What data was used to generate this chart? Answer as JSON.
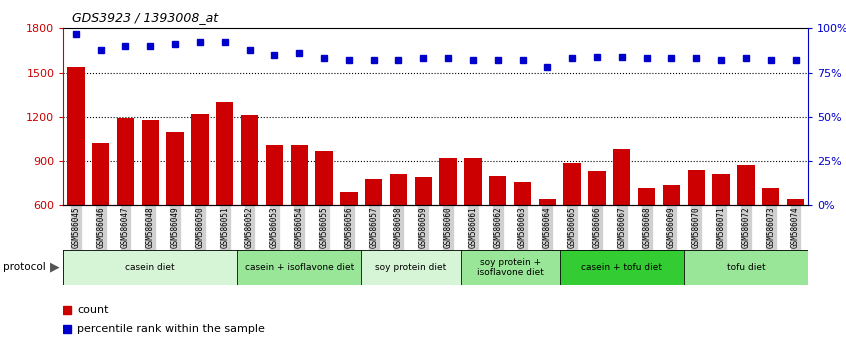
{
  "title": "GDS3923 / 1393008_at",
  "samples": [
    "GSM586045",
    "GSM586046",
    "GSM586047",
    "GSM586048",
    "GSM586049",
    "GSM586050",
    "GSM586051",
    "GSM586052",
    "GSM586053",
    "GSM586054",
    "GSM586055",
    "GSM586056",
    "GSM586057",
    "GSM586058",
    "GSM586059",
    "GSM586060",
    "GSM586061",
    "GSM586062",
    "GSM586063",
    "GSM586064",
    "GSM586065",
    "GSM586066",
    "GSM586067",
    "GSM586068",
    "GSM586069",
    "GSM586070",
    "GSM586071",
    "GSM586072",
    "GSM586073",
    "GSM586074"
  ],
  "counts": [
    1540,
    1020,
    1190,
    1180,
    1100,
    1220,
    1300,
    1210,
    1010,
    1010,
    970,
    690,
    780,
    810,
    790,
    920,
    920,
    800,
    760,
    640,
    890,
    830,
    980,
    720,
    740,
    840,
    810,
    870,
    720,
    640
  ],
  "percentile": [
    97,
    88,
    90,
    90,
    91,
    92,
    92,
    88,
    85,
    86,
    83,
    82,
    82,
    82,
    83,
    83,
    82,
    82,
    82,
    78,
    83,
    84,
    84,
    83,
    83,
    83,
    82,
    83,
    82,
    82
  ],
  "groups": [
    {
      "label": "casein diet",
      "start": 0,
      "end": 6,
      "color": "#d6f5d6"
    },
    {
      "label": "casein + isoflavone diet",
      "start": 7,
      "end": 11,
      "color": "#99e699"
    },
    {
      "label": "soy protein diet",
      "start": 12,
      "end": 15,
      "color": "#d6f5d6"
    },
    {
      "label": "soy protein +\nisoflavone diet",
      "start": 16,
      "end": 19,
      "color": "#99e699"
    },
    {
      "label": "casein + tofu diet",
      "start": 20,
      "end": 24,
      "color": "#33cc33"
    },
    {
      "label": "tofu diet",
      "start": 25,
      "end": 29,
      "color": "#99e699"
    }
  ],
  "ylim_left": [
    600,
    1800
  ],
  "ylim_right": [
    0,
    100
  ],
  "yticks_left": [
    600,
    900,
    1200,
    1500,
    1800
  ],
  "yticks_right": [
    0,
    25,
    50,
    75,
    100
  ],
  "bar_color": "#cc0000",
  "dot_color": "#0000cc",
  "bg_color": "#ffffff",
  "label_count": "count",
  "label_pct": "percentile rank within the sample"
}
